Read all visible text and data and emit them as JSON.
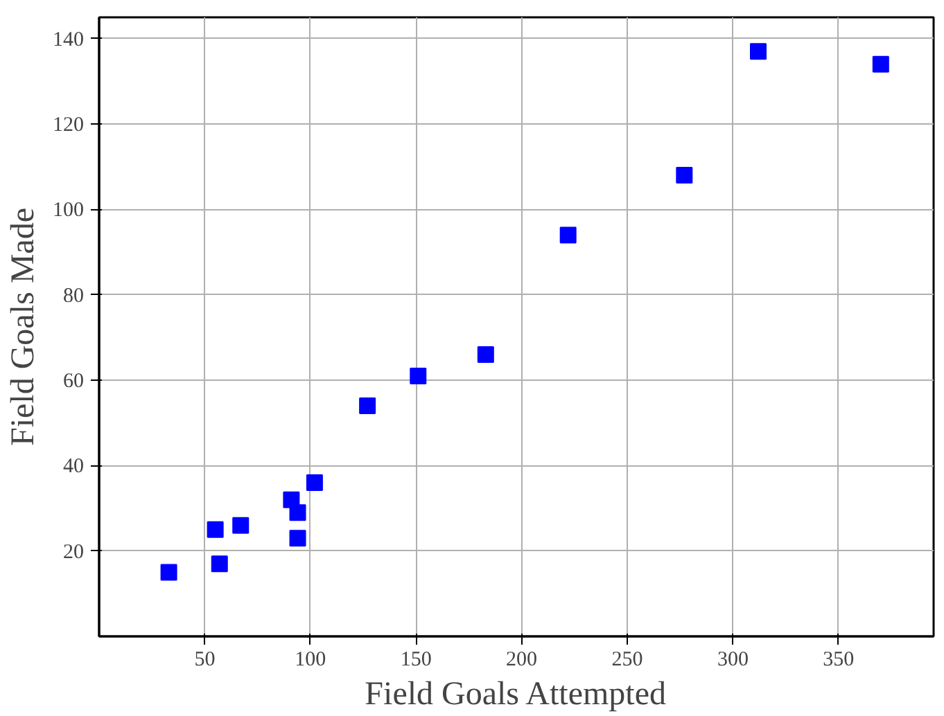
{
  "chart_data": {
    "type": "scatter",
    "xlabel": "Field Goals Attempted",
    "ylabel": "Field Goals Made",
    "x": [
      33,
      55,
      57,
      67,
      91,
      94,
      94,
      102,
      127,
      151,
      183,
      222,
      277,
      312,
      370
    ],
    "series": [
      {
        "color": "#0000ff",
        "values": [
          15,
          25,
          17,
          26,
          32,
          29,
          23,
          36,
          54,
          61,
          66,
          94,
          108,
          137,
          134
        ]
      }
    ],
    "xlim": [
      0,
      395
    ],
    "ylim": [
      0,
      145
    ],
    "xticks": [
      50,
      100,
      150,
      200,
      250,
      300,
      350
    ],
    "yticks": [
      20,
      40,
      60,
      80,
      100,
      120,
      140
    ],
    "grid": true,
    "marker": "square"
  }
}
